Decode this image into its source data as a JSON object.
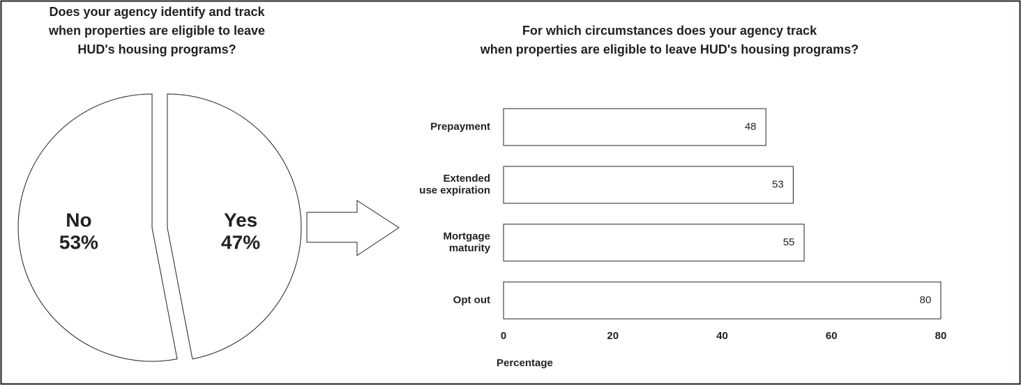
{
  "chart_data": [
    {
      "type": "pie",
      "title": [
        "Does your agency identify and track",
        "when properties are eligible to leave",
        "HUD's housing programs?"
      ],
      "categories": [
        "No",
        "Yes"
      ],
      "values": [
        53,
        47
      ],
      "value_labels": [
        "53%",
        "47%"
      ],
      "color": "#ffffff"
    },
    {
      "type": "bar",
      "orientation": "horizontal",
      "title": [
        "For which circumstances does your agency track",
        "when properties are eligible to leave HUD's housing programs?"
      ],
      "categories": [
        "Prepayment",
        "Extended\nuse expiration",
        "Mortgage\nmaturity",
        "Opt out"
      ],
      "values": [
        48,
        53,
        55,
        80
      ],
      "xlabel": "Percentage",
      "xlim": [
        0,
        80
      ],
      "xticks": [
        0,
        20,
        40,
        60,
        80
      ],
      "grid": false,
      "color": "#ffffff"
    }
  ]
}
